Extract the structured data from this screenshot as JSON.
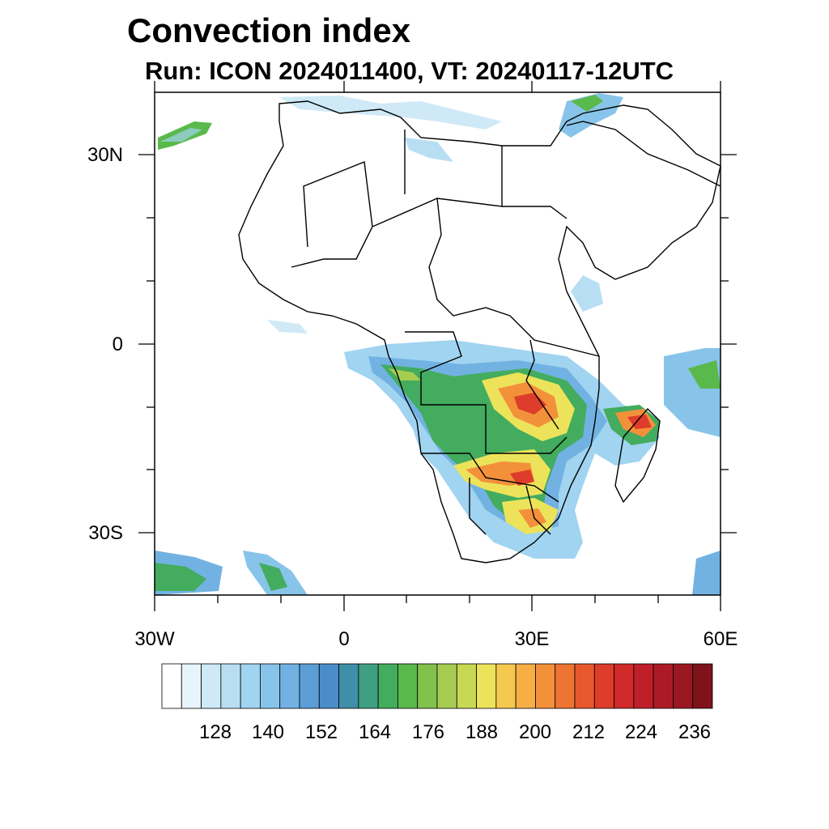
{
  "header": {
    "title": "Convection index",
    "subtitle": "Run: ICON 2024011400,  VT: 20240117-12UTC"
  },
  "map": {
    "lat_labels": [
      "30N",
      "0",
      "30S"
    ],
    "lon_labels": [
      "30W",
      "0",
      "30E",
      "60E"
    ],
    "extent": {
      "lon": [
        -30,
        60
      ],
      "lat": [
        -40,
        40
      ]
    }
  },
  "colorbar": {
    "labels": [
      "128",
      "140",
      "152",
      "164",
      "176",
      "188",
      "200",
      "212",
      "224",
      "236"
    ],
    "colors": [
      "#ffffff",
      "#e8f4fb",
      "#cfe9f7",
      "#b8def3",
      "#a0d4f0",
      "#88c4ea",
      "#72b2e2",
      "#5b9ed6",
      "#4b8dc9",
      "#3f8fa8",
      "#3f9f82",
      "#43ac5e",
      "#5ab94b",
      "#82c14c",
      "#a6cd51",
      "#c8d855",
      "#ece35a",
      "#f5c94f",
      "#f6ae45",
      "#f3913b",
      "#ee7433",
      "#e8582d",
      "#dd3d2a",
      "#d02a2a",
      "#c01f2a",
      "#ad1a27",
      "#991822",
      "#7f121a"
    ]
  }
}
